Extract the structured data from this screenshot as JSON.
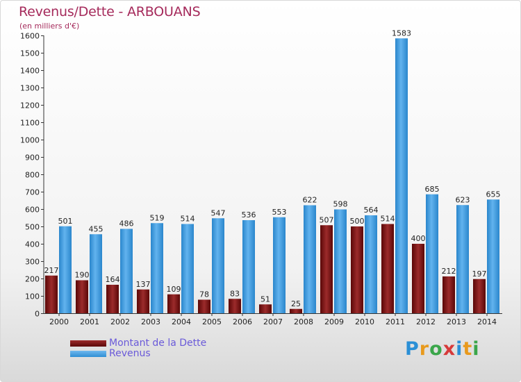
{
  "chart_data": {
    "type": "bar",
    "title": "Revenus/Dette - ARBOUANS",
    "subtitle": "(en milliers d'€)",
    "xlabel": "",
    "ylabel": "",
    "ylim": [
      0,
      1600
    ],
    "yticks": [
      0,
      100,
      200,
      300,
      400,
      500,
      600,
      700,
      800,
      900,
      1000,
      1100,
      1200,
      1300,
      1400,
      1500,
      1600
    ],
    "grid": false,
    "legend_position": "bottom-left",
    "categories": [
      "2000",
      "2001",
      "2002",
      "2003",
      "2004",
      "2005",
      "2006",
      "2007",
      "2008",
      "2009",
      "2010",
      "2011",
      "2012",
      "2013",
      "2014"
    ],
    "series": [
      {
        "name": "Montant de la Dette",
        "color": "#7a1414",
        "values": [
          217,
          190,
          164,
          137,
          109,
          78,
          83,
          51,
          25,
          507,
          500,
          514,
          400,
          212,
          197
        ]
      },
      {
        "name": "Revenus",
        "color": "#4aa3e6",
        "values": [
          501,
          455,
          486,
          519,
          514,
          547,
          536,
          553,
          622,
          598,
          564,
          1583,
          685,
          623,
          655
        ]
      }
    ]
  },
  "brand": {
    "logo_letters": [
      "P",
      "r",
      "o",
      "x",
      "i",
      "t",
      "i"
    ],
    "logo_colors": [
      "#2a8fd6",
      "#e89a1e",
      "#3aa64a",
      "#d63a3a",
      "#2a8fd6",
      "#e89a1e",
      "#3aa64a"
    ]
  }
}
